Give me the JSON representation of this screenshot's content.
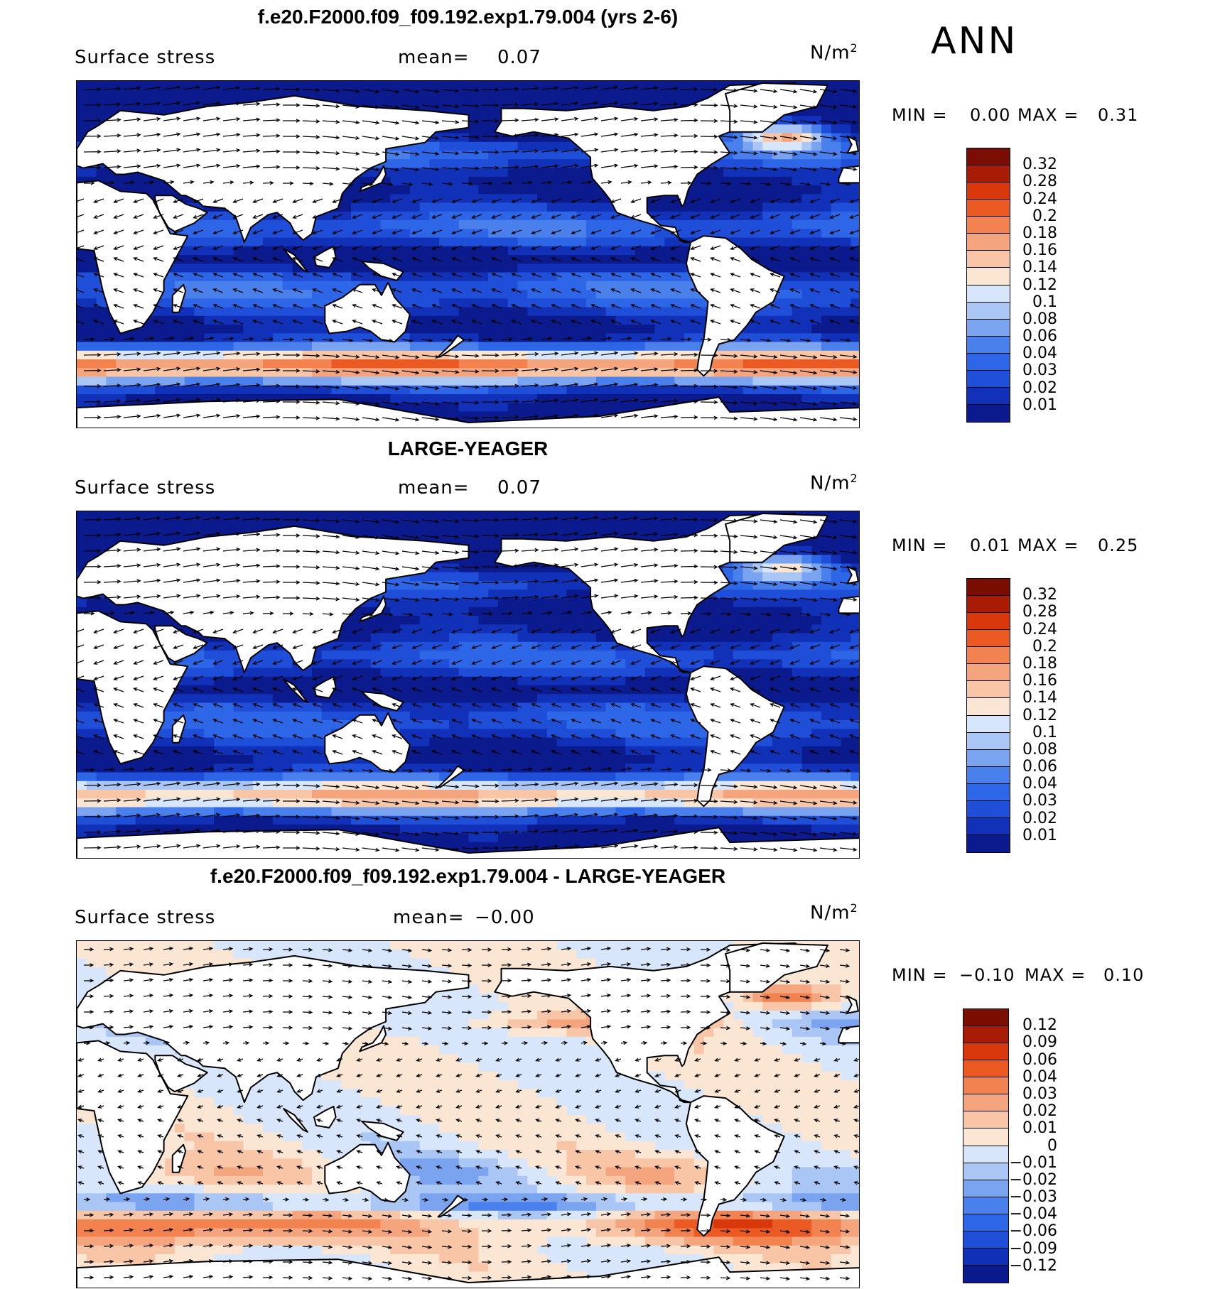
{
  "season": "ANN",
  "colors": {
    "abs_scale": [
      "#0b1a8c",
      "#1132b8",
      "#1f4fd8",
      "#2e66e8",
      "#4a80ec",
      "#7aa3f0",
      "#aac6f5",
      "#d7e6fb",
      "#fbe6d4",
      "#f8c6a6",
      "#f5a57e",
      "#f2824f",
      "#ec5a23",
      "#d9380d",
      "#a81c06",
      "#7a0e02"
    ],
    "diff_scale": [
      "#0b1a8c",
      "#1132b8",
      "#1f4fd8",
      "#2e66e8",
      "#4a80ec",
      "#7aa3f0",
      "#aac6f5",
      "#d7e6fb",
      "#fbe6d4",
      "#f8c6a6",
      "#f5a57e",
      "#f2824f",
      "#ec5a23",
      "#d9380d",
      "#a81c06",
      "#7a0e02"
    ],
    "land": "#ffffff",
    "coast": "#000000"
  },
  "panels": [
    {
      "title": "f.e20.F2000.f09_f09.192.exp1.79.004 (yrs 2-6)",
      "variable": "Surface stress",
      "mean_label": "mean=",
      "mean_value": "0.07",
      "units": "N/m",
      "units_exp": "2",
      "min_label": "MIN =",
      "min_value": "0.00",
      "max_label": "MAX =",
      "max_value": "0.31",
      "colorbar_labels": [
        "0.32",
        "0.28",
        "0.24",
        "0.2",
        "0.18",
        "0.16",
        "0.14",
        "0.12",
        "0.1",
        "0.08",
        "0.06",
        "0.04",
        "0.03",
        "0.02",
        "0.01"
      ]
    },
    {
      "title": "LARGE-YEAGER",
      "variable": "Surface stress",
      "mean_label": "mean=",
      "mean_value": "0.07",
      "units": "N/m",
      "units_exp": "2",
      "min_label": "MIN =",
      "min_value": "0.01",
      "max_label": "MAX =",
      "max_value": "0.25",
      "colorbar_labels": [
        "0.32",
        "0.28",
        "0.24",
        "0.2",
        "0.18",
        "0.16",
        "0.14",
        "0.12",
        "0.1",
        "0.08",
        "0.06",
        "0.04",
        "0.03",
        "0.02",
        "0.01"
      ]
    },
    {
      "title": "f.e20.F2000.f09_f09.192.exp1.79.004 - LARGE-YEAGER",
      "variable": "Surface stress",
      "mean_label": "mean=",
      "mean_value": "−0.00",
      "units": "N/m",
      "units_exp": "2",
      "min_label": "MIN =",
      "min_value": "−0.10",
      "max_label": "MAX =",
      "max_value": "0.10",
      "colorbar_labels": [
        "0.12",
        "0.09",
        "0.06",
        "0.04",
        "0.03",
        "0.02",
        "0.01",
        "0",
        "−0.01",
        "−0.02",
        "−0.03",
        "−0.04",
        "−0.06",
        "−0.09",
        "−0.12"
      ]
    }
  ]
}
